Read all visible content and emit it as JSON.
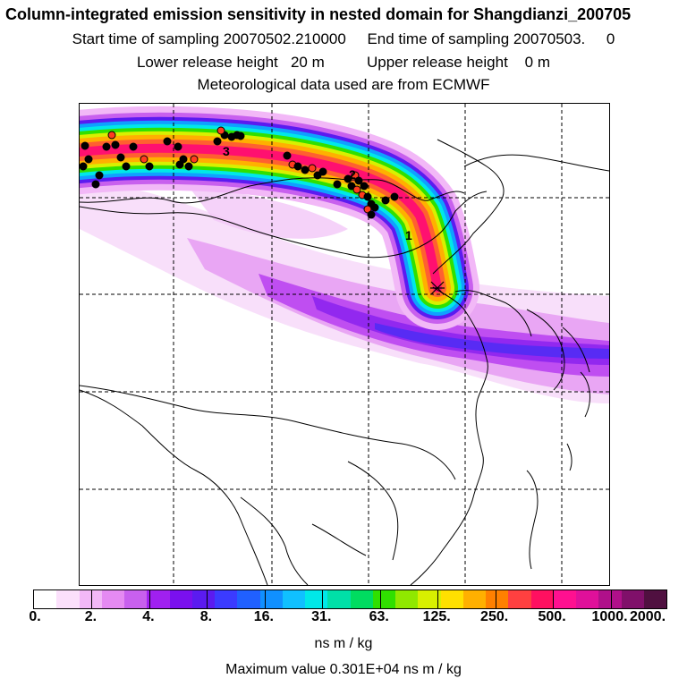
{
  "titles": {
    "line1": "Column-integrated emission sensitivity in nested domain for Shangdianzi_200705",
    "line2": "Start time of sampling 20070502.210000     End time of sampling 20070503.     0",
    "line3": "Lower release height   20 m          Upper release height    0 m",
    "line4": "Meteorological data used are from ECMWF"
  },
  "map_labels": {
    "day1": "1",
    "day2": "2",
    "day3": "3"
  },
  "colorbar": {
    "colors": [
      "#ffffff",
      "#fbe0fb",
      "#f2b8f7",
      "#e58af2",
      "#c860ee",
      "#a020f0",
      "#7a10ee",
      "#5b1bf0",
      "#3b3bff",
      "#2060ff",
      "#1090ff",
      "#10c0ff",
      "#00e8e8",
      "#00e0a8",
      "#00dc60",
      "#30e000",
      "#90e800",
      "#d8f000",
      "#ffe000",
      "#ffb000",
      "#ff8000",
      "#ff4040",
      "#ff1060",
      "#ff1090",
      "#e0109a",
      "#b0108a",
      "#80106a",
      "#501040"
    ],
    "tick_labels": [
      "0.",
      "2.",
      "4.",
      "8.",
      "16.",
      "31.",
      "63.",
      "125.",
      "250.",
      "500.",
      "1000.",
      "2000."
    ],
    "unit": "ns m / kg",
    "max_text": "Maximum value  0.301E+04 ns m / kg"
  }
}
